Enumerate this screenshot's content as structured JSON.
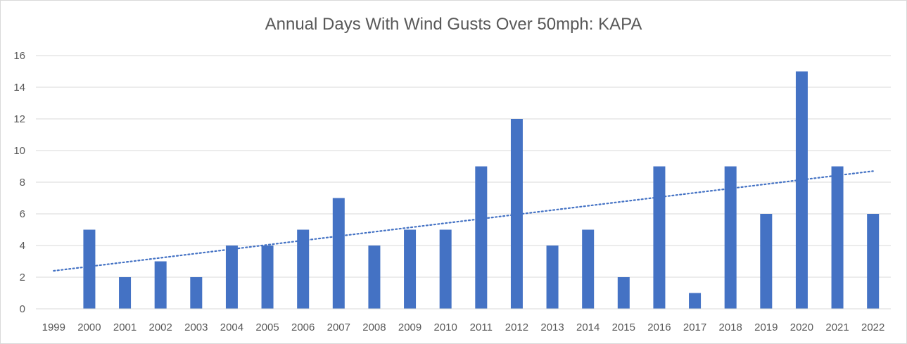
{
  "chart_data": {
    "type": "bar",
    "title": "Annual Days With Wind Gusts Over 50mph: KAPA",
    "xlabel": "",
    "ylabel": "",
    "categories": [
      "1999",
      "2000",
      "2001",
      "2002",
      "2003",
      "2004",
      "2005",
      "2006",
      "2007",
      "2008",
      "2009",
      "2010",
      "2011",
      "2012",
      "2013",
      "2014",
      "2015",
      "2016",
      "2017",
      "2018",
      "2019",
      "2020",
      "2021",
      "2022"
    ],
    "series": [
      {
        "values": [
          0,
          5,
          2,
          3,
          2,
          4,
          4,
          5,
          7,
          4,
          5,
          5,
          9,
          12,
          4,
          5,
          2,
          9,
          1,
          9,
          6,
          15,
          9,
          6
        ],
        "color": "#4472c4"
      }
    ],
    "trendline": {
      "type": "linear",
      "style": "dotted",
      "color": "#4472c4",
      "start_value": 2.4,
      "end_value": 8.7
    },
    "ylim": [
      0,
      16
    ],
    "yticks": [
      0,
      2,
      4,
      6,
      8,
      10,
      12,
      14,
      16
    ],
    "grid": true,
    "legend": "none"
  }
}
